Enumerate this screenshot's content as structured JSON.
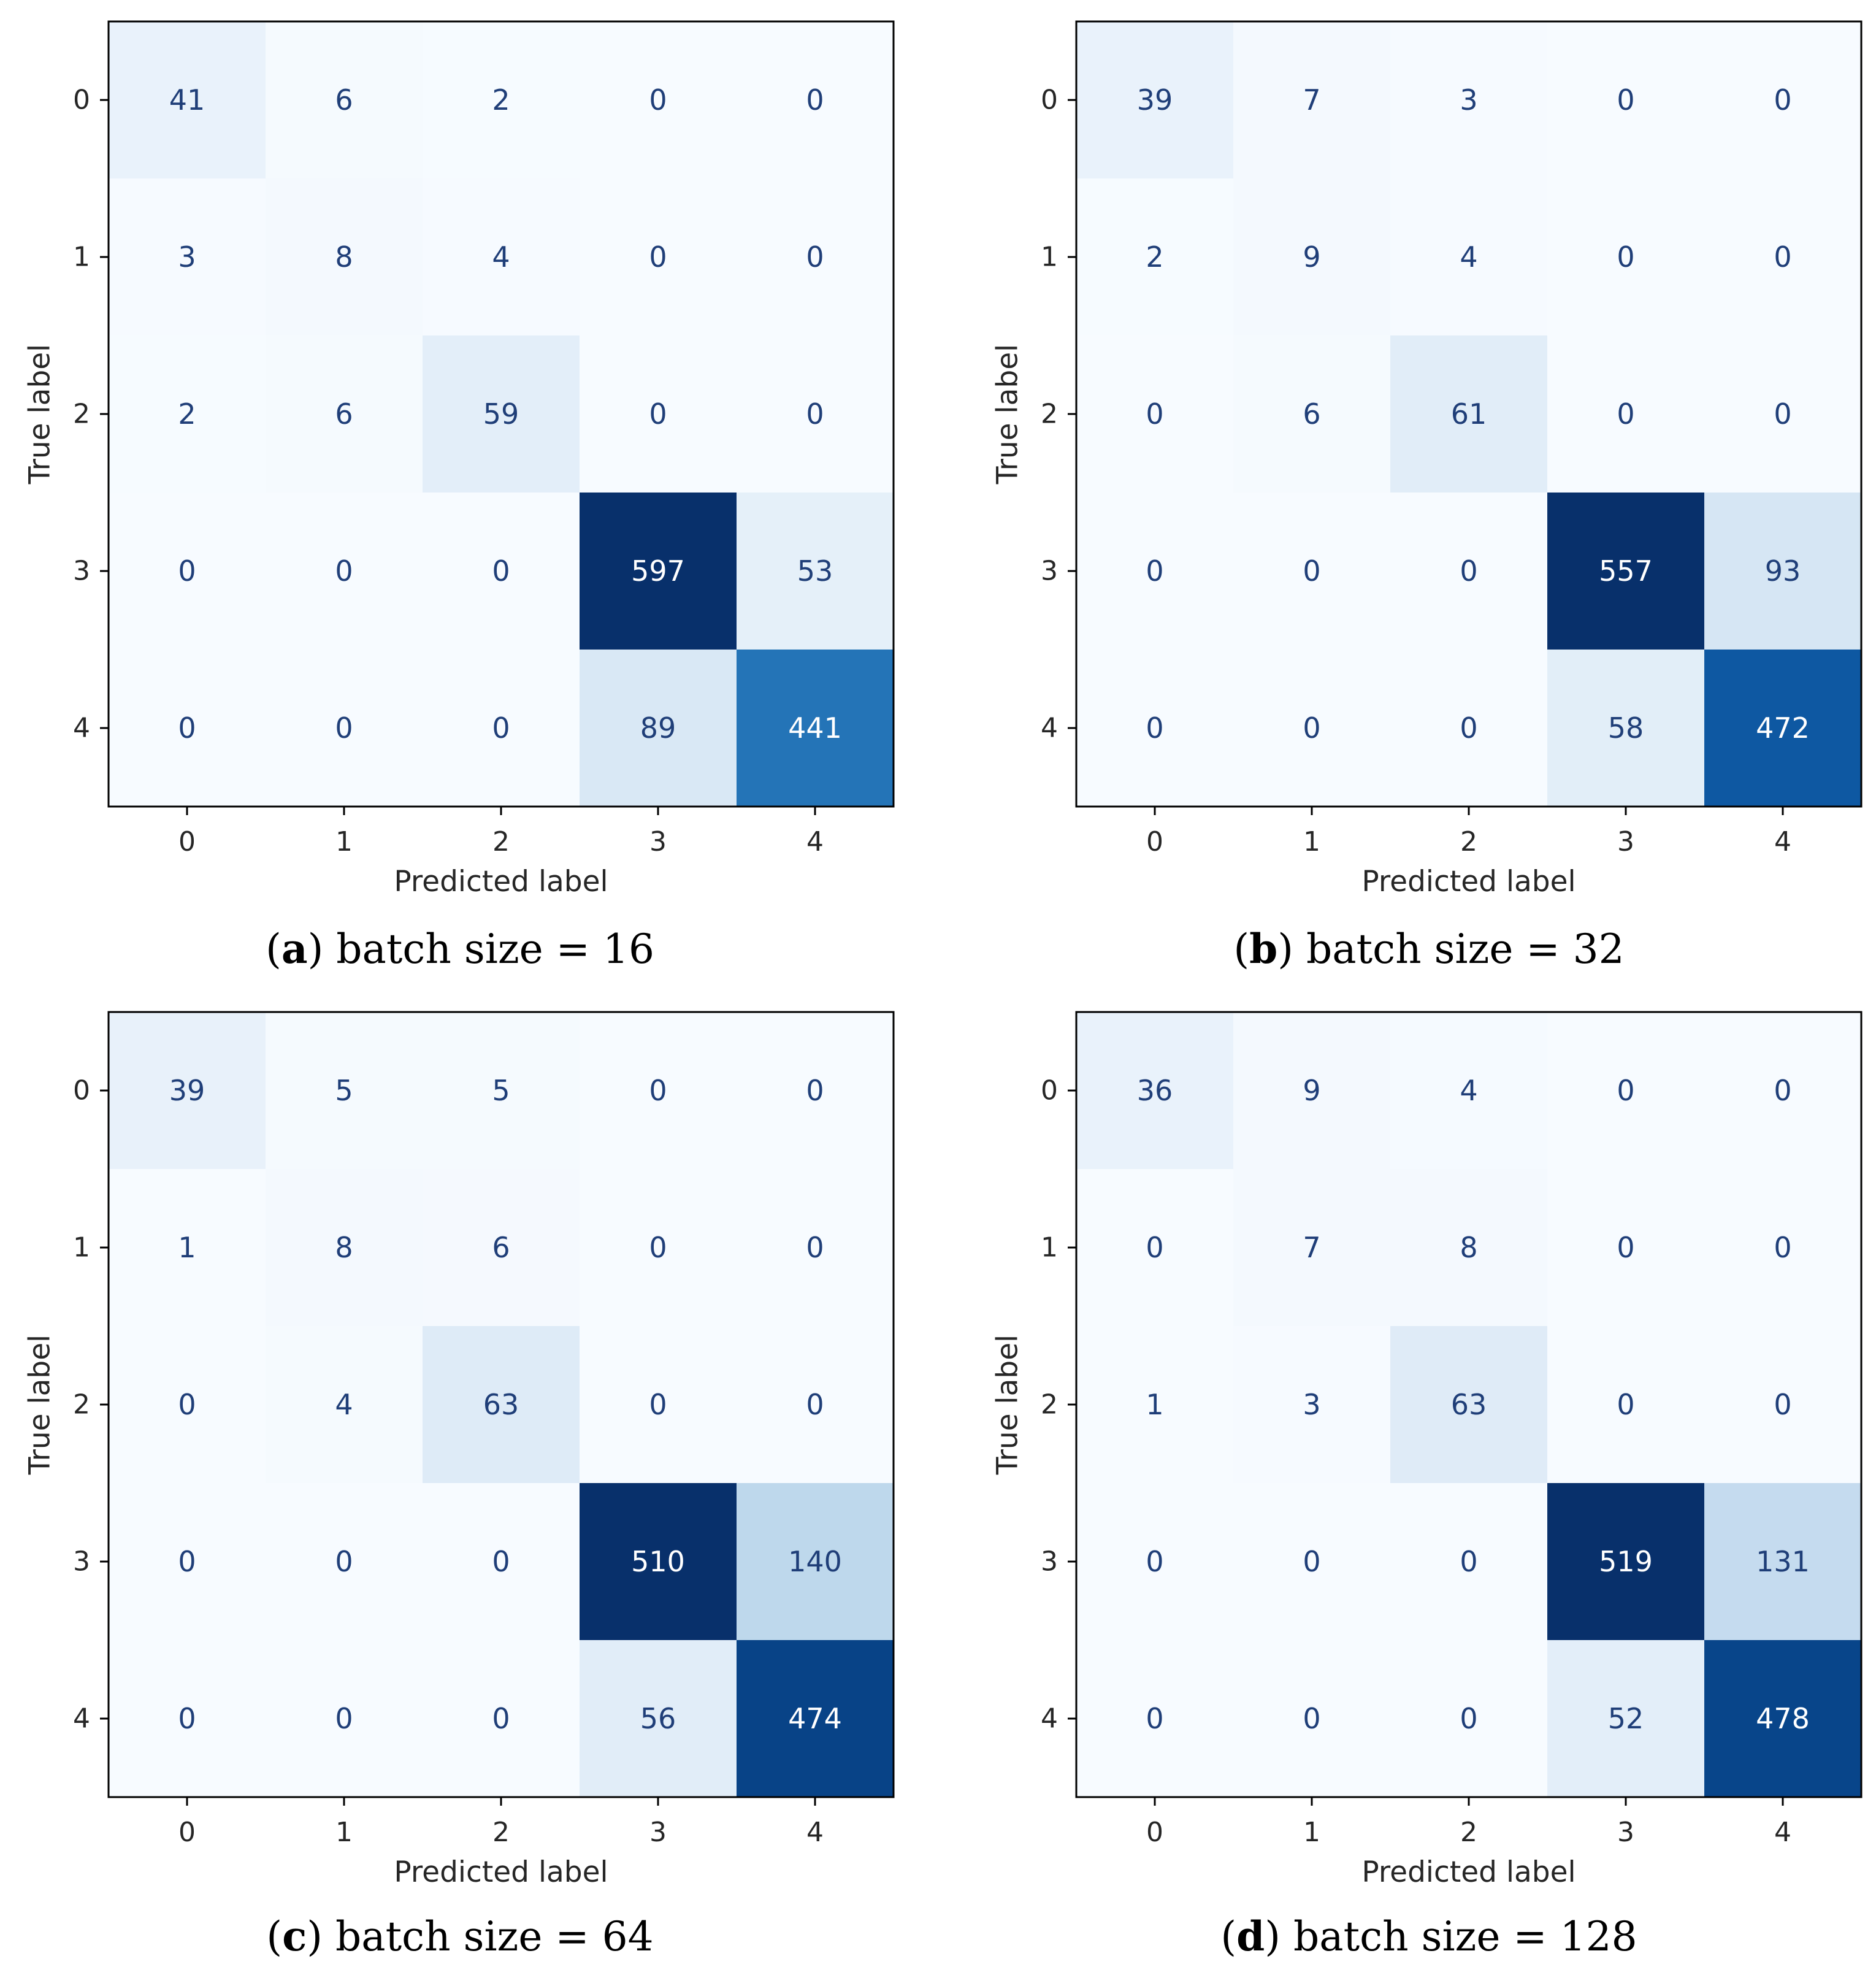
{
  "chart_data": [
    {
      "type": "heatmap",
      "panel": "a",
      "caption_bold": "a",
      "caption_text": " batch size = 16",
      "xlabel": "Predicted label",
      "ylabel": "True label",
      "x_ticks": [
        "0",
        "1",
        "2",
        "3",
        "4"
      ],
      "y_ticks": [
        "0",
        "1",
        "2",
        "3",
        "4"
      ],
      "colormap": "Blues",
      "matrix": [
        [
          41,
          6,
          2,
          0,
          0
        ],
        [
          3,
          8,
          4,
          0,
          0
        ],
        [
          2,
          6,
          59,
          0,
          0
        ],
        [
          0,
          0,
          0,
          597,
          53
        ],
        [
          0,
          0,
          0,
          89,
          441
        ]
      ]
    },
    {
      "type": "heatmap",
      "panel": "b",
      "caption_bold": "b",
      "caption_text": " batch size = 32",
      "xlabel": "Predicted label",
      "ylabel": "True label",
      "x_ticks": [
        "0",
        "1",
        "2",
        "3",
        "4"
      ],
      "y_ticks": [
        "0",
        "1",
        "2",
        "3",
        "4"
      ],
      "colormap": "Blues",
      "matrix": [
        [
          39,
          7,
          3,
          0,
          0
        ],
        [
          2,
          9,
          4,
          0,
          0
        ],
        [
          0,
          6,
          61,
          0,
          0
        ],
        [
          0,
          0,
          0,
          557,
          93
        ],
        [
          0,
          0,
          0,
          58,
          472
        ]
      ]
    },
    {
      "type": "heatmap",
      "panel": "c",
      "caption_bold": "c",
      "caption_text": " batch size = 64",
      "xlabel": "Predicted label",
      "ylabel": "True label",
      "x_ticks": [
        "0",
        "1",
        "2",
        "3",
        "4"
      ],
      "y_ticks": [
        "0",
        "1",
        "2",
        "3",
        "4"
      ],
      "colormap": "Blues",
      "matrix": [
        [
          39,
          5,
          5,
          0,
          0
        ],
        [
          1,
          8,
          6,
          0,
          0
        ],
        [
          0,
          4,
          63,
          0,
          0
        ],
        [
          0,
          0,
          0,
          510,
          140
        ],
        [
          0,
          0,
          0,
          56,
          474
        ]
      ]
    },
    {
      "type": "heatmap",
      "panel": "d",
      "caption_bold": "d",
      "caption_text": " batch size = 128",
      "xlabel": "Predicted label",
      "ylabel": "True label",
      "x_ticks": [
        "0",
        "1",
        "2",
        "3",
        "4"
      ],
      "y_ticks": [
        "0",
        "1",
        "2",
        "3",
        "4"
      ],
      "colormap": "Blues",
      "matrix": [
        [
          36,
          9,
          4,
          0,
          0
        ],
        [
          0,
          7,
          8,
          0,
          0
        ],
        [
          1,
          3,
          63,
          0,
          0
        ],
        [
          0,
          0,
          0,
          519,
          131
        ],
        [
          0,
          0,
          0,
          52,
          478
        ]
      ]
    }
  ]
}
